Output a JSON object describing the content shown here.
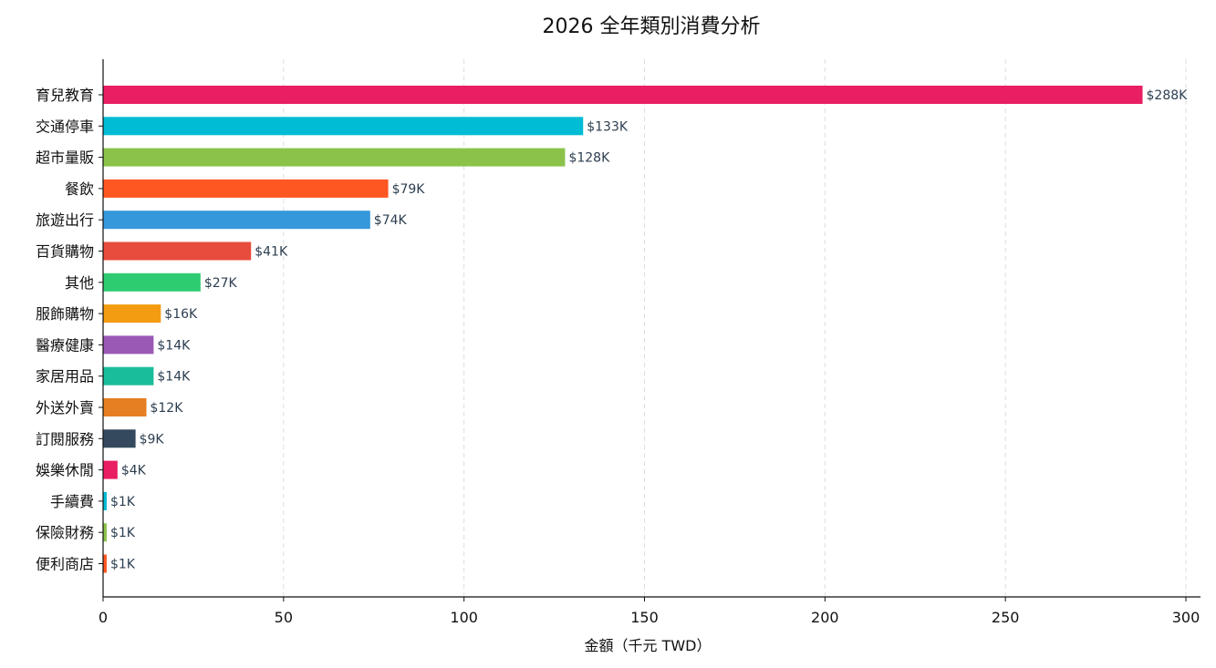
{
  "chart_data": {
    "type": "bar",
    "orientation": "horizontal",
    "title": "2026 全年類別消費分析",
    "xlabel": "金額（千元 TWD）",
    "ylabel": "",
    "xlim": [
      0,
      303
    ],
    "xticks": [
      0,
      50,
      100,
      150,
      200,
      250,
      300
    ],
    "grid": "vertical dashed",
    "categories": [
      "育兒教育",
      "交通停車",
      "超市量販",
      "餐飲",
      "旅遊出行",
      "百貨購物",
      "其他",
      "服飾購物",
      "醫療健康",
      "家居用品",
      "外送外賣",
      "訂閱服務",
      "娛樂休閒",
      "手續費",
      "保險財務",
      "便利商店"
    ],
    "values": [
      288,
      133,
      128,
      79,
      74,
      41,
      27,
      16,
      14,
      14,
      12,
      9,
      4,
      1,
      1,
      1
    ],
    "data_labels": [
      "$288K",
      "$133K",
      "$128K",
      "$79K",
      "$74K",
      "$41K",
      "$27K",
      "$16K",
      "$14K",
      "$14K",
      "$12K",
      "$9K",
      "$4K",
      "$1K",
      "$1K",
      "$1K"
    ],
    "colors": [
      "#e91e63",
      "#00bcd4",
      "#8bc34a",
      "#ff5722",
      "#3498db",
      "#e74c3c",
      "#2ecc71",
      "#f39c12",
      "#9b59b6",
      "#1abc9c",
      "#e67e22",
      "#34495e",
      "#e91e63",
      "#00bcd4",
      "#8bc34a",
      "#ff5722"
    ]
  }
}
